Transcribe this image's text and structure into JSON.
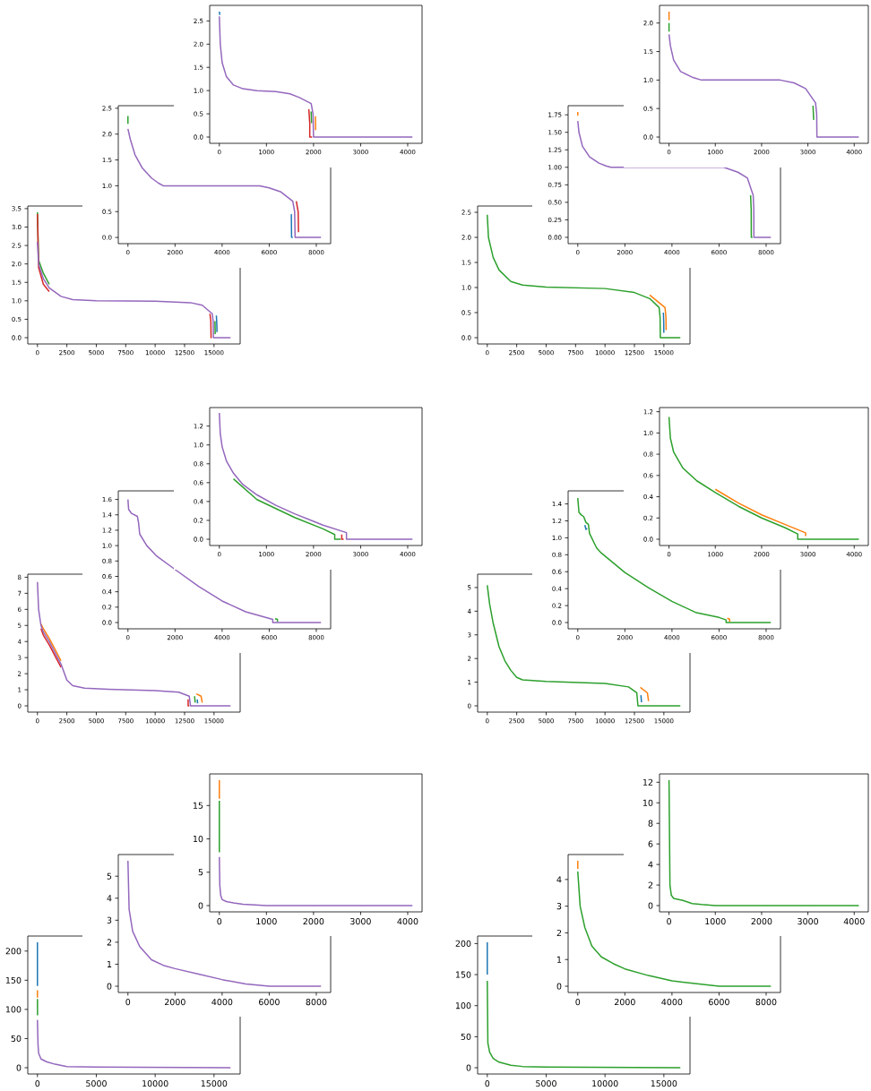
{
  "chart_data": [
    {
      "type": "line",
      "xlim": [
        -205,
        4305
      ],
      "ylim": [
        -0.135,
        2.835
      ],
      "xticks": [
        0,
        1000,
        2000,
        3000,
        4000
      ],
      "yticks": [
        {
          "value": 0,
          "label": "0.0"
        },
        {
          "value": 0.5,
          "label": "0.5"
        },
        {
          "value": 1,
          "label": "1.0"
        },
        {
          "value": 1.5,
          "label": "1.5"
        },
        {
          "value": 2,
          "label": "2.0"
        },
        {
          "value": 2.5,
          "label": "2.5"
        }
      ],
      "series": [
        {
          "color": "#1f77b4",
          "x": [
            0,
            10
          ],
          "values": [
            2.7,
            2.63
          ]
        },
        {
          "color": "#ff7f0e",
          "x": [
            2040,
            2045
          ],
          "values": [
            0.45,
            0.15
          ]
        },
        {
          "color": "#2ca02c",
          "x": [
            1950,
            1958
          ],
          "values": [
            0.55,
            0.3
          ]
        },
        {
          "color": "#d62728",
          "x": [
            1900,
            1920,
            1920,
            1970
          ],
          "values": [
            0.6,
            0.3,
            0,
            0
          ]
        },
        {
          "color": "#9467bd",
          "x": [
            0,
            20,
            60,
            150,
            300,
            500,
            800,
            1200,
            1500,
            1700,
            1950,
            1990,
            2000,
            4100
          ],
          "values": [
            2.6,
            2.0,
            1.6,
            1.3,
            1.12,
            1.04,
            1.0,
            0.98,
            0.93,
            0.85,
            0.72,
            0.5,
            0,
            0
          ]
        }
      ]
    },
    {
      "type": "line",
      "xlim": [
        -205,
        4305
      ],
      "ylim": [
        -0.11,
        2.31
      ],
      "xticks": [
        0,
        1000,
        2000,
        3000,
        4000
      ],
      "yticks": [
        {
          "value": 0,
          "label": "0.0"
        },
        {
          "value": 0.5,
          "label": "0.5"
        },
        {
          "value": 1,
          "label": "1.0"
        },
        {
          "value": 1.5,
          "label": "1.5"
        },
        {
          "value": 2,
          "label": "2.0"
        }
      ],
      "series": [
        {
          "color": "#ff7f0e",
          "x": [
            0,
            0
          ],
          "values": [
            2.2,
            2.05
          ]
        },
        {
          "color": "#2ca02c",
          "x": [
            0,
            0,
            1500,
            3110,
            3125
          ],
          "values": [
            2.0,
            1.85,
            null,
            0.55,
            0.3
          ]
        },
        {
          "color": "#9467bd",
          "x": [
            0,
            30,
            100,
            250,
            500,
            700,
            2400,
            2700,
            2950,
            3165,
            3190,
            3195,
            4100
          ],
          "values": [
            1.8,
            1.6,
            1.35,
            1.15,
            1.05,
            1.0,
            1.0,
            0.95,
            0.85,
            0.6,
            0.4,
            0,
            0
          ]
        }
      ]
    },
    {
      "type": "line",
      "xlim": [
        -410,
        8610
      ],
      "ylim": [
        -0.12,
        2.55
      ],
      "xticks": [
        0,
        2000,
        4000,
        6000,
        8000
      ],
      "yticks": [
        {
          "value": 0,
          "label": "0.0"
        },
        {
          "value": 0.5,
          "label": "0.5"
        },
        {
          "value": 1,
          "label": "1.0"
        },
        {
          "value": 1.5,
          "label": "1.5"
        },
        {
          "value": 2,
          "label": "2.0"
        },
        {
          "value": 2.5,
          "label": "2.5"
        }
      ],
      "series": [
        {
          "color": "#1f77b4",
          "x": [
            6940,
            6950,
            7000
          ],
          "values": [
            0.45,
            0,
            0
          ]
        },
        {
          "color": "#2ca02c",
          "x": [
            0,
            0
          ],
          "values": [
            2.35,
            2.2
          ]
        },
        {
          "color": "#d62728",
          "x": [
            7150,
            7230,
            7245
          ],
          "values": [
            0.7,
            0.5,
            0.1
          ]
        },
        {
          "color": "#9467bd",
          "x": [
            0,
            100,
            300,
            600,
            1000,
            1300,
            1500,
            5600,
            6000,
            6500,
            7000,
            7080,
            7100,
            8200
          ],
          "values": [
            2.1,
            1.9,
            1.6,
            1.35,
            1.15,
            1.05,
            1.0,
            1.0,
            0.96,
            0.88,
            0.7,
            0.5,
            0,
            0
          ]
        }
      ]
    },
    {
      "type": "line",
      "xlim": [
        -410,
        8610
      ],
      "ylim": [
        -0.09,
        1.88
      ],
      "xticks": [
        0,
        2000,
        4000,
        6000,
        8000
      ],
      "yticks": [
        {
          "value": 0,
          "label": "0.00"
        },
        {
          "value": 0.25,
          "label": "0.25"
        },
        {
          "value": 0.5,
          "label": "0.50"
        },
        {
          "value": 0.75,
          "label": "0.75"
        },
        {
          "value": 1,
          "label": "1.00"
        },
        {
          "value": 1.25,
          "label": "1.25"
        },
        {
          "value": 1.5,
          "label": "1.50"
        },
        {
          "value": 1.75,
          "label": "1.75"
        }
      ],
      "series": [
        {
          "color": "#ff7f0e",
          "x": [
            0,
            0
          ],
          "values": [
            1.79,
            1.74
          ]
        },
        {
          "color": "#2ca02c",
          "x": [
            7340,
            7365,
            7370,
            7420
          ],
          "values": [
            0.6,
            0.4,
            0,
            0
          ]
        },
        {
          "color": "#9467bd",
          "x": [
            0,
            50,
            200,
            500,
            900,
            1200,
            1400,
            6200,
            6800,
            7200,
            7450,
            7475,
            7480,
            8200
          ],
          "values": [
            1.66,
            1.5,
            1.3,
            1.15,
            1.06,
            1.02,
            1.0,
            1.0,
            0.93,
            0.85,
            0.6,
            0.4,
            0,
            0
          ]
        }
      ]
    },
    {
      "type": "line",
      "xlim": [
        -820,
        17220
      ],
      "ylim": [
        -0.17,
        3.57
      ],
      "xticks": [
        0,
        2500,
        5000,
        7500,
        10000,
        12500,
        15000
      ],
      "yticks": [
        {
          "value": 0,
          "label": "0.0"
        },
        {
          "value": 0.5,
          "label": "0.5"
        },
        {
          "value": 1,
          "label": "1.0"
        },
        {
          "value": 1.5,
          "label": "1.5"
        },
        {
          "value": 2,
          "label": "2.0"
        },
        {
          "value": 2.5,
          "label": "2.5"
        },
        {
          "value": 3,
          "label": "3.0"
        },
        {
          "value": 3.5,
          "label": "3.5"
        }
      ],
      "series": [
        {
          "color": "#1f77b4",
          "x": [
            15200,
            15240,
            15250
          ],
          "values": [
            0.6,
            0.35,
            0.15
          ]
        },
        {
          "color": "#2ca02c",
          "x": [
            0,
            100,
            500,
            1000,
            5000,
            15080,
            15100
          ],
          "values": [
            3.4,
            2.1,
            1.75,
            1.45,
            null,
            0.45,
            0.1
          ]
        },
        {
          "color": "#d62728",
          "x": [
            0,
            100,
            500,
            1000,
            5000,
            14650,
            14730,
            14750,
            14800
          ],
          "values": [
            3.35,
            1.9,
            1.45,
            1.25,
            null,
            0.65,
            0.45,
            0,
            0
          ]
        },
        {
          "color": "#9467bd",
          "x": [
            0,
            100,
            500,
            1000,
            2000,
            3000,
            5000,
            10000,
            13000,
            14000,
            14850,
            14930,
            14950,
            16400
          ],
          "values": [
            2.6,
            2.0,
            1.6,
            1.35,
            1.12,
            1.03,
            1.0,
            0.99,
            0.95,
            0.88,
            0.65,
            0.45,
            0,
            0
          ]
        }
      ]
    },
    {
      "type": "line",
      "xlim": [
        -820,
        17220
      ],
      "ylim": [
        -0.125,
        2.625
      ],
      "xticks": [
        0,
        2500,
        5000,
        7500,
        10000,
        12500,
        15000
      ],
      "yticks": [
        {
          "value": 0,
          "label": "0.0"
        },
        {
          "value": 0.5,
          "label": "0.5"
        },
        {
          "value": 1,
          "label": "1.0"
        },
        {
          "value": 1.5,
          "label": "1.5"
        },
        {
          "value": 2,
          "label": "2.0"
        },
        {
          "value": 2.5,
          "label": "2.5"
        }
      ],
      "series": [
        {
          "color": "#1f77b4",
          "x": [
            14960,
            14990,
            14998
          ],
          "values": [
            0.5,
            0.3,
            0.1
          ]
        },
        {
          "color": "#ff7f0e",
          "x": [
            13800,
            15100,
            15180,
            15195
          ],
          "values": [
            0.85,
            0.6,
            0.4,
            0.15
          ]
        },
        {
          "color": "#2ca02c",
          "x": [
            0,
            100,
            500,
            1000,
            2000,
            3000,
            5000,
            10000,
            12500,
            13800,
            14600,
            14680,
            14700,
            16400
          ],
          "values": [
            2.45,
            2.0,
            1.6,
            1.35,
            1.12,
            1.05,
            1.01,
            0.98,
            0.9,
            0.78,
            0.6,
            0.4,
            0,
            0
          ]
        }
      ]
    },
    {
      "type": "line",
      "xlim": [
        -205,
        4305
      ],
      "ylim": [
        -0.0665,
        1.3965
      ],
      "xticks": [
        0,
        1000,
        2000,
        3000,
        4000
      ],
      "yticks": [
        {
          "value": 0,
          "label": "0.0"
        },
        {
          "value": 0.2,
          "label": "0.2"
        },
        {
          "value": 0.4,
          "label": "0.4"
        },
        {
          "value": 0.6,
          "label": "0.6"
        },
        {
          "value": 0.8,
          "label": "0.8"
        },
        {
          "value": 1,
          "label": "1.0"
        },
        {
          "value": 1.2,
          "label": "1.2"
        }
      ],
      "series": [
        {
          "color": "#2ca02c",
          "x": [
            300,
            800,
            1600,
            2200,
            2450,
            2450,
            2580
          ],
          "values": [
            0.64,
            0.42,
            0.23,
            0.11,
            0.05,
            0,
            0
          ]
        },
        {
          "color": "#d62728",
          "x": [
            2600,
            2600,
            2640
          ],
          "values": [
            0.05,
            0,
            0
          ]
        },
        {
          "color": "#9467bd",
          "x": [
            0,
            20,
            60,
            150,
            300,
            500,
            800,
            1200,
            1600,
            2000,
            2200,
            2700,
            2700,
            4100
          ],
          "values": [
            1.34,
            1.12,
            0.98,
            0.83,
            0.7,
            0.58,
            0.47,
            0.36,
            0.27,
            0.19,
            0.15,
            0.07,
            0,
            0
          ]
        }
      ]
    },
    {
      "type": "line",
      "xlim": [
        -205,
        4305
      ],
      "ylim": [
        -0.059,
        1.239
      ],
      "xticks": [
        0,
        1000,
        2000,
        3000,
        4000
      ],
      "yticks": [
        {
          "value": 0,
          "label": "0.0"
        },
        {
          "value": 0.2,
          "label": "0.2"
        },
        {
          "value": 0.4,
          "label": "0.4"
        },
        {
          "value": 0.6,
          "label": "0.6"
        },
        {
          "value": 0.8,
          "label": "0.8"
        },
        {
          "value": 1,
          "label": "1.0"
        },
        {
          "value": 1.2,
          "label": "1.2"
        }
      ],
      "series": [
        {
          "color": "#ff7f0e",
          "x": [
            1000,
            1500,
            2000,
            2500,
            2950,
            2950
          ],
          "values": [
            0.47,
            0.34,
            0.23,
            0.14,
            0.06,
            0.03
          ]
        },
        {
          "color": "#2ca02c",
          "x": [
            0,
            30,
            100,
            300,
            600,
            1000,
            1500,
            2000,
            2500,
            2780,
            2780,
            4100
          ],
          "values": [
            1.15,
            0.95,
            0.82,
            0.67,
            0.55,
            0.44,
            0.31,
            0.2,
            0.11,
            0.05,
            0,
            0
          ]
        }
      ]
    },
    {
      "type": "line",
      "xlim": [
        -410,
        8610
      ],
      "ylim": [
        -0.0815,
        1.7115
      ],
      "xticks": [
        0,
        2000,
        4000,
        6000,
        8000
      ],
      "yticks": [
        {
          "value": 0,
          "label": "0.0"
        },
        {
          "value": 0.2,
          "label": "0.2"
        },
        {
          "value": 0.4,
          "label": "0.4"
        },
        {
          "value": 0.6,
          "label": "0.6"
        },
        {
          "value": 0.8,
          "label": "0.8"
        },
        {
          "value": 1,
          "label": "1.0"
        },
        {
          "value": 1.2,
          "label": "1.2"
        },
        {
          "value": 1.4,
          "label": "1.4"
        },
        {
          "value": 1.6,
          "label": "1.6"
        }
      ],
      "series": [
        {
          "color": "#2ca02c",
          "x": [
            6250,
            6350,
            6350
          ],
          "values": [
            0.05,
            0.04,
            0.01
          ]
        },
        {
          "color": "#9467bd",
          "x": [
            0,
            30,
            150,
            400,
            450,
            500,
            800,
            1200,
            2000,
            3000,
            4000,
            5000,
            6150,
            6150,
            8200
          ],
          "values": [
            1.6,
            1.47,
            1.42,
            1.38,
            1.3,
            1.15,
            1.0,
            0.87,
            0.69,
            0.47,
            0.28,
            0.14,
            0.04,
            0,
            0
          ]
        }
      ]
    },
    {
      "type": "line",
      "xlim": [
        -410,
        8610
      ],
      "ylim": [
        -0.074,
        1.554
      ],
      "xticks": [
        0,
        2000,
        4000,
        6000,
        8000
      ],
      "yticks": [
        {
          "value": 0,
          "label": "0.0"
        },
        {
          "value": 0.2,
          "label": "0.2"
        },
        {
          "value": 0.4,
          "label": "0.4"
        },
        {
          "value": 0.6,
          "label": "0.6"
        },
        {
          "value": 0.8,
          "label": "0.8"
        },
        {
          "value": 1,
          "label": "1.0"
        },
        {
          "value": 1.2,
          "label": "1.2"
        },
        {
          "value": 1.4,
          "label": "1.4"
        }
      ],
      "series": [
        {
          "color": "#1f77b4",
          "x": [
            300,
            350,
            400
          ],
          "values": [
            1.15,
            1.1,
            1.11
          ]
        },
        {
          "color": "#ff7f0e",
          "x": [
            6350,
            6450,
            6450
          ],
          "values": [
            0.05,
            0.04,
            0.01
          ]
        },
        {
          "color": "#2ca02c",
          "x": [
            0,
            50,
            150,
            250,
            350,
            450,
            500,
            800,
            1000,
            2000,
            3000,
            4000,
            5000,
            6000,
            6300,
            6300,
            8200
          ],
          "values": [
            1.47,
            1.3,
            1.27,
            1.25,
            1.18,
            1.16,
            1.05,
            0.88,
            0.82,
            0.59,
            0.41,
            0.25,
            0.12,
            0.06,
            0.03,
            0,
            0
          ]
        }
      ]
    },
    {
      "type": "line",
      "xlim": [
        -820,
        17220
      ],
      "ylim": [
        -0.39,
        8.19
      ],
      "xticks": [
        0,
        2500,
        5000,
        7500,
        10000,
        12500,
        15000
      ],
      "yticks": [
        0,
        1,
        2,
        3,
        4,
        5,
        6,
        7,
        8
      ],
      "series": [
        {
          "color": "#1f77b4",
          "x": [
            13580,
            13600
          ],
          "values": [
            0.4,
            0.15
          ]
        },
        {
          "color": "#ff7f0e",
          "x": [
            300,
            500,
            1000,
            1500,
            2000,
            5000,
            13500,
            13900,
            14000
          ],
          "values": [
            5.1,
            4.8,
            4.2,
            3.5,
            2.8,
            null,
            0.75,
            0.6,
            0.2
          ]
        },
        {
          "color": "#2ca02c",
          "x": [
            13350,
            13400
          ],
          "values": [
            0.6,
            0.2
          ]
        },
        {
          "color": "#d62728",
          "x": [
            300,
            500,
            1000,
            1500,
            2000,
            5000,
            12800,
            12800,
            12900
          ],
          "values": [
            4.8,
            4.4,
            3.8,
            3.1,
            2.4,
            null,
            0.4,
            0,
            0
          ]
        },
        {
          "color": "#9467bd",
          "x": [
            0,
            100,
            300,
            500,
            1000,
            1500,
            2000,
            2500,
            3000,
            4000,
            6000,
            10000,
            12000,
            12900,
            13000,
            16400
          ],
          "values": [
            7.7,
            6.0,
            5.0,
            4.6,
            4.0,
            3.3,
            2.6,
            1.6,
            1.25,
            1.1,
            1.03,
            0.95,
            0.85,
            0.6,
            0,
            0
          ]
        }
      ]
    },
    {
      "type": "line",
      "xlim": [
        -820,
        17220
      ],
      "ylim": [
        -0.265,
        5.565
      ],
      "xticks": [
        0,
        2500,
        5000,
        7500,
        10000,
        12500,
        15000
      ],
      "yticks": [
        0,
        1,
        2,
        3,
        4,
        5
      ],
      "series": [
        {
          "color": "#1f77b4",
          "x": [
            13050,
            13100
          ],
          "values": [
            0.45,
            0.15
          ]
        },
        {
          "color": "#ff7f0e",
          "x": [
            13000,
            13600,
            13700
          ],
          "values": [
            0.78,
            0.55,
            0.2
          ]
        },
        {
          "color": "#2ca02c",
          "x": [
            0,
            200,
            500,
            1000,
            1500,
            2000,
            2500,
            3000,
            5000,
            10000,
            12000,
            12700,
            12800,
            16400
          ],
          "values": [
            5.1,
            4.3,
            3.5,
            2.5,
            1.9,
            1.5,
            1.2,
            1.1,
            1.03,
            0.95,
            0.8,
            0.55,
            0,
            0
          ]
        }
      ]
    },
    {
      "type": "line",
      "xlim": [
        -205,
        4305
      ],
      "ylim": [
        -0.94,
        19.74
      ],
      "xticks": [
        0,
        1000,
        2000,
        3000,
        4000
      ],
      "yticks": [
        0,
        5,
        10,
        15
      ],
      "series": [
        {
          "color": "#ff7f0e",
          "x": [
            0,
            0
          ],
          "values": [
            18.8,
            16
          ]
        },
        {
          "color": "#2ca02c",
          "x": [
            0,
            0
          ],
          "values": [
            15.7,
            8
          ]
        },
        {
          "color": "#9467bd",
          "x": [
            0,
            10,
            30,
            60,
            150,
            300,
            500,
            1000,
            4100
          ],
          "values": [
            7.3,
            3,
            1.5,
            0.9,
            0.6,
            0.4,
            0.2,
            0,
            0
          ]
        }
      ]
    },
    {
      "type": "line",
      "xlim": [
        -205,
        4305
      ],
      "ylim": [
        -0.61,
        12.81
      ],
      "xticks": [
        0,
        1000,
        2000,
        3000,
        4000
      ],
      "yticks": [
        0,
        2,
        4,
        6,
        8,
        10,
        12
      ],
      "series": [
        {
          "color": "#2ca02c",
          "x": [
            0,
            20,
            50,
            100,
            300,
            500,
            700,
            1000,
            4100
          ],
          "values": [
            12.2,
            2.0,
            1.0,
            0.7,
            0.5,
            0.2,
            0.1,
            0,
            0
          ]
        }
      ]
    },
    {
      "type": "line",
      "xlim": [
        -410,
        8610
      ],
      "ylim": [
        -0.285,
        5.985
      ],
      "xticks": [
        0,
        2000,
        4000,
        6000,
        8000
      ],
      "yticks": [
        0,
        1,
        2,
        3,
        4,
        5
      ],
      "series": [
        {
          "color": "#9467bd",
          "x": [
            0,
            50,
            200,
            500,
            1000,
            1500,
            2000,
            3000,
            4000,
            5000,
            6000,
            8200
          ],
          "values": [
            5.7,
            3.5,
            2.5,
            1.8,
            1.2,
            0.95,
            0.8,
            0.55,
            0.3,
            0.1,
            0,
            0
          ]
        }
      ]
    },
    {
      "type": "line",
      "xlim": [
        -410,
        8610
      ],
      "ylim": [
        -0.235,
        4.935
      ],
      "xticks": [
        0,
        2000,
        4000,
        6000,
        8000
      ],
      "yticks": [
        0,
        1,
        2,
        3,
        4
      ],
      "series": [
        {
          "color": "#ff7f0e",
          "x": [
            0,
            0
          ],
          "values": [
            4.7,
            4.4
          ]
        },
        {
          "color": "#2ca02c",
          "x": [
            0,
            100,
            300,
            600,
            1000,
            1500,
            2000,
            3000,
            4000,
            5000,
            6000,
            8200
          ],
          "values": [
            4.3,
            3.0,
            2.2,
            1.5,
            1.1,
            0.85,
            0.65,
            0.4,
            0.2,
            0.1,
            0,
            0
          ]
        }
      ]
    },
    {
      "type": "line",
      "xlim": [
        -820,
        17220
      ],
      "ylim": [
        -10.75,
        225.75
      ],
      "xticks": [
        0,
        5000,
        10000,
        15000
      ],
      "yticks": [
        0,
        50,
        100,
        150,
        200
      ],
      "series": [
        {
          "color": "#1f77b4",
          "x": [
            0,
            0
          ],
          "values": [
            215,
            140
          ]
        },
        {
          "color": "#ff7f0e",
          "x": [
            0,
            0
          ],
          "values": [
            133,
            120
          ]
        },
        {
          "color": "#2ca02c",
          "x": [
            0,
            10
          ],
          "values": [
            118,
            90
          ]
        },
        {
          "color": "#9467bd",
          "x": [
            0,
            50,
            100,
            300,
            800,
            1500,
            2500,
            5000,
            16400
          ],
          "values": [
            82,
            40,
            25,
            15,
            10,
            6,
            2,
            1,
            0
          ]
        }
      ]
    },
    {
      "type": "line",
      "xlim": [
        -820,
        17220
      ],
      "ylim": [
        -10.1,
        212.1
      ],
      "xticks": [
        0,
        5000,
        10000,
        15000
      ],
      "yticks": [
        0,
        50,
        100,
        150,
        200
      ],
      "series": [
        {
          "color": "#1f77b4",
          "x": [
            0,
            0
          ],
          "values": [
            202,
            150
          ]
        },
        {
          "color": "#2ca02c",
          "x": [
            0,
            50,
            200,
            500,
            1000,
            2000,
            3000,
            5000,
            16400
          ],
          "values": [
            140,
            40,
            25,
            15,
            9,
            4,
            2,
            1,
            0
          ]
        }
      ]
    }
  ]
}
